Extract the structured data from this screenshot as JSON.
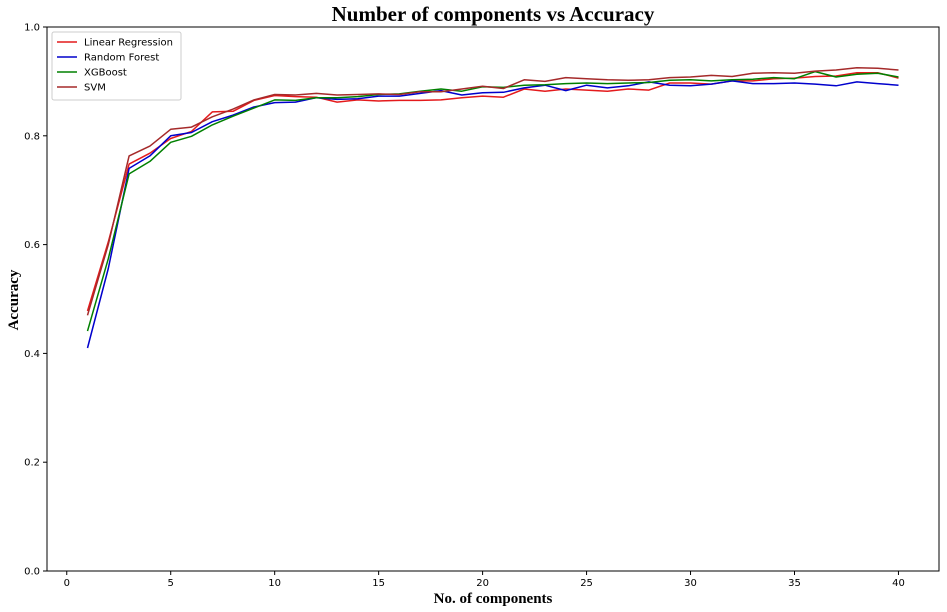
{
  "chart_data": {
    "type": "line",
    "title": "Number of components vs Accuracy",
    "xlabel": "No. of components",
    "ylabel": "Accuracy",
    "xlim": [
      -0.95,
      41.95
    ],
    "ylim": [
      0,
      1.0
    ],
    "xticks": [
      0,
      5,
      10,
      15,
      20,
      25,
      30,
      35,
      40
    ],
    "yticks": [
      0.0,
      0.2,
      0.4,
      0.6,
      0.8,
      1.0
    ],
    "ytick_labels": [
      "0.0",
      "0.2",
      "0.4",
      "0.6",
      "0.8",
      "1.0"
    ],
    "grid": false,
    "legend_position": "upper-left",
    "x": [
      1,
      2,
      3,
      4,
      5,
      6,
      7,
      8,
      9,
      10,
      11,
      12,
      13,
      14,
      15,
      16,
      17,
      18,
      19,
      20,
      21,
      22,
      23,
      24,
      25,
      26,
      27,
      28,
      29,
      30,
      31,
      32,
      33,
      34,
      35,
      36,
      37,
      38,
      39,
      40
    ],
    "series": [
      {
        "name": "Linear Regression",
        "color": "#e41a1c",
        "values": [
          0.478,
          0.605,
          0.748,
          0.768,
          0.795,
          0.808,
          0.844,
          0.845,
          0.865,
          0.874,
          0.872,
          0.871,
          0.862,
          0.866,
          0.864,
          0.865,
          0.865,
          0.866,
          0.87,
          0.873,
          0.871,
          0.886,
          0.882,
          0.886,
          0.884,
          0.882,
          0.886,
          0.884,
          0.897,
          0.897,
          0.895,
          0.901,
          0.901,
          0.905,
          0.906,
          0.909,
          0.91,
          0.916,
          0.916,
          0.906
        ]
      },
      {
        "name": "Random Forest",
        "color": "#0000cc",
        "values": [
          0.41,
          0.556,
          0.74,
          0.763,
          0.8,
          0.806,
          0.826,
          0.838,
          0.853,
          0.861,
          0.862,
          0.87,
          0.867,
          0.868,
          0.873,
          0.873,
          0.878,
          0.883,
          0.875,
          0.879,
          0.88,
          0.888,
          0.893,
          0.883,
          0.893,
          0.888,
          0.892,
          0.899,
          0.893,
          0.892,
          0.895,
          0.901,
          0.896,
          0.896,
          0.897,
          0.895,
          0.892,
          0.899,
          0.896,
          0.893
        ]
      },
      {
        "name": "XGBoost",
        "color": "#008000",
        "values": [
          0.441,
          0.574,
          0.73,
          0.753,
          0.788,
          0.799,
          0.82,
          0.836,
          0.851,
          0.866,
          0.865,
          0.87,
          0.87,
          0.872,
          0.876,
          0.877,
          0.882,
          0.886,
          0.882,
          0.89,
          0.889,
          0.893,
          0.894,
          0.896,
          0.897,
          0.896,
          0.897,
          0.898,
          0.902,
          0.903,
          0.901,
          0.903,
          0.904,
          0.907,
          0.905,
          0.918,
          0.908,
          0.913,
          0.915,
          0.908
        ]
      },
      {
        "name": "SVM",
        "color": "#a52a2a",
        "values": [
          0.47,
          0.6,
          0.763,
          0.781,
          0.812,
          0.816,
          0.835,
          0.849,
          0.866,
          0.876,
          0.875,
          0.878,
          0.875,
          0.876,
          0.877,
          0.876,
          0.881,
          0.881,
          0.886,
          0.891,
          0.887,
          0.903,
          0.9,
          0.907,
          0.905,
          0.903,
          0.902,
          0.903,
          0.907,
          0.908,
          0.911,
          0.909,
          0.915,
          0.916,
          0.915,
          0.919,
          0.921,
          0.925,
          0.924,
          0.921
        ]
      }
    ]
  }
}
